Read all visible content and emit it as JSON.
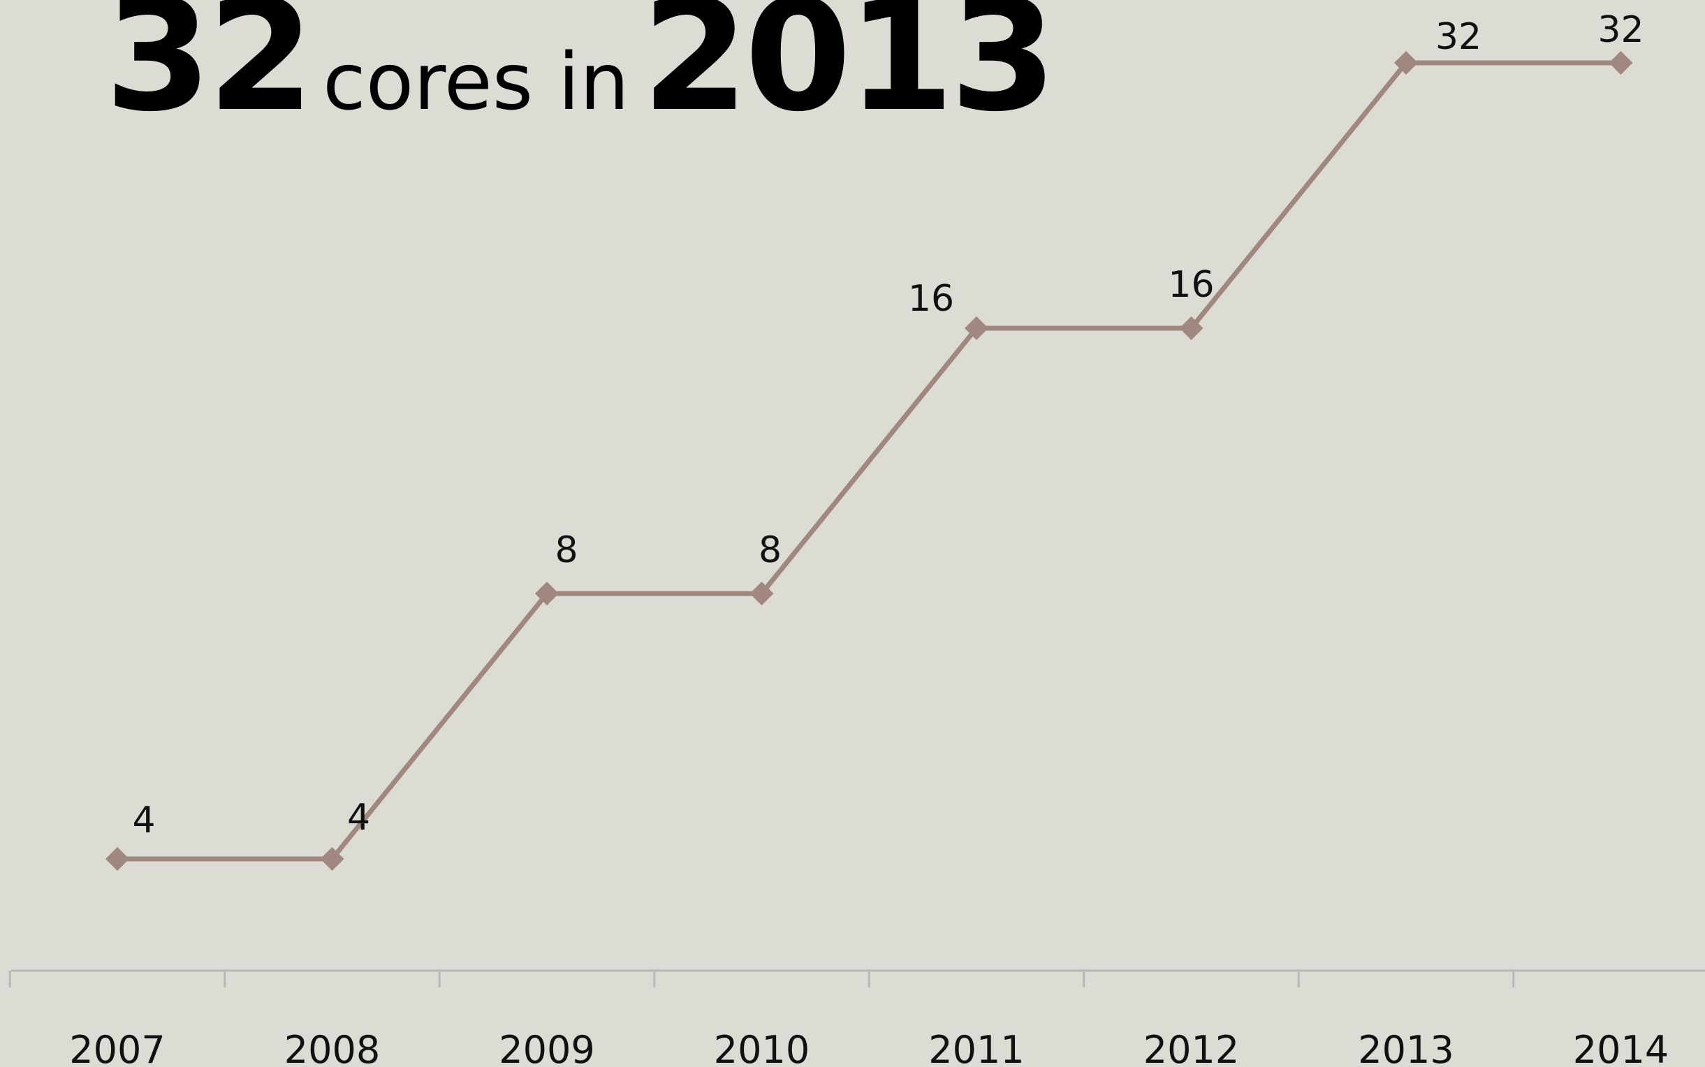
{
  "headline": {
    "count": "32",
    "middle": "cores in",
    "year": "2013"
  },
  "chart_data": {
    "type": "line",
    "categories": [
      "2007",
      "2008",
      "2009",
      "2010",
      "2011",
      "2012",
      "2013",
      "2014"
    ],
    "series": [
      {
        "values": [
          4,
          4,
          8,
          8,
          16,
          16,
          32,
          32
        ]
      }
    ],
    "data_labels": [
      "4",
      "4",
      "8",
      "8",
      "16",
      "16",
      "32",
      "32"
    ],
    "ylim": [
      0,
      40
    ],
    "grid": false,
    "line_color": "#a08880",
    "marker": "diamond",
    "xlabel": "",
    "ylabel": ""
  }
}
